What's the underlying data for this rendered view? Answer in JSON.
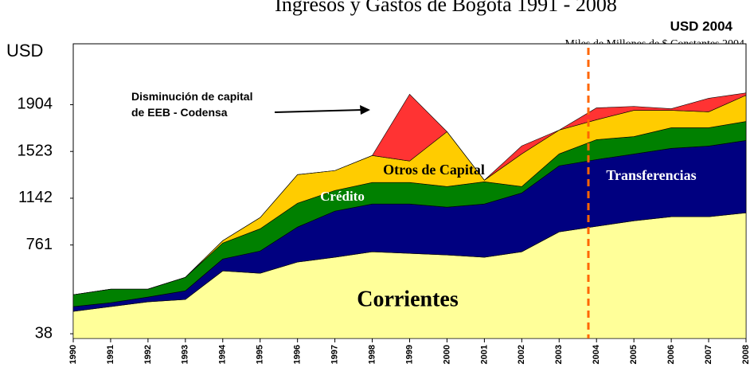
{
  "chart_data": {
    "type": "stacked_area",
    "title": "Ingresos y Gastos de Bogotá 1991 - 2008",
    "subtitle": "USD 2004",
    "note": "Miles de Millones de $ Constantes 2004",
    "y_label": "USD",
    "annotation": "Disminución de capital de EEB - Codensa",
    "categories": [
      "1990",
      "1991",
      "1992",
      "1993",
      "1994",
      "1995",
      "1996",
      "1997",
      "1998",
      "1999",
      "2000",
      "2001",
      "2002",
      "2003",
      "2004",
      "2005",
      "2006",
      "2007",
      "2008"
    ],
    "series": [
      {
        "name": "Corrientes",
        "color": "#ffff99",
        "values": [
          220,
          259,
          298,
          317,
          550,
          531,
          622,
          661,
          706,
          693,
          680,
          661,
          706,
          868,
          913,
          958,
          991,
          991,
          1023
        ]
      },
      {
        "name": "Transferencias",
        "color": "#000080",
        "values": [
          39,
          32,
          39,
          71,
          97,
          181,
          285,
          376,
          389,
          402,
          389,
          434,
          479,
          538,
          544,
          544,
          557,
          576,
          589
        ]
      },
      {
        "name": "Crédito",
        "color": "#008000",
        "values": [
          97,
          110,
          65,
          110,
          130,
          181,
          194,
          168,
          175,
          175,
          168,
          181,
          52,
          97,
          162,
          142,
          168,
          149,
          155
        ]
      },
      {
        "name": "Otros de Capital",
        "color": "#ffcc00",
        "values": [
          0,
          0,
          0,
          0,
          19,
          91,
          233,
          162,
          220,
          175,
          447,
          13,
          266,
          194,
          162,
          214,
          142,
          130,
          214
        ]
      },
      {
        "color": "#ff3333",
        "values": [
          0,
          0,
          0,
          0,
          0,
          0,
          0,
          0,
          0,
          544,
          0,
          0,
          65,
          0,
          97,
          32,
          13,
          110,
          19
        ]
      }
    ],
    "ylim": [
      0,
      2400
    ],
    "yticks": [
      38,
      761,
      1142,
      1523,
      1904
    ]
  }
}
